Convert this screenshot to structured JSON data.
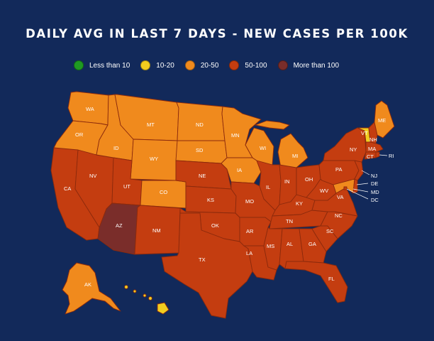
{
  "title": "DAILY AVG IN LAST 7 DAYS - NEW CASES PER 100K",
  "colors": {
    "background": "#12295a",
    "less_than_10": "#1f9a22",
    "10_20": "#f2cd1f",
    "20_50": "#f08a1d",
    "50_100": "#c43d10",
    "more_than_100": "#7a2d2a"
  },
  "legend": [
    {
      "label": "Less than 10",
      "color": "#1f9a22"
    },
    {
      "label": "10-20",
      "color": "#f2cd1f"
    },
    {
      "label": "20-50",
      "color": "#f08a1d"
    },
    {
      "label": "50-100",
      "color": "#c43d10"
    },
    {
      "label": "More than 100",
      "color": "#7a2d2a"
    }
  ],
  "states": {
    "WA": {
      "label": "WA",
      "category": "20-50"
    },
    "OR": {
      "label": "OR",
      "category": "20-50"
    },
    "CA": {
      "label": "CA",
      "category": "50-100"
    },
    "NV": {
      "label": "NV",
      "category": "50-100"
    },
    "ID": {
      "label": "ID",
      "category": "20-50"
    },
    "MT": {
      "label": "MT",
      "category": "20-50"
    },
    "WY": {
      "label": "WY",
      "category": "20-50"
    },
    "UT": {
      "label": "UT",
      "category": "50-100"
    },
    "AZ": {
      "label": "AZ",
      "category": "More than 100"
    },
    "CO": {
      "label": "CO",
      "category": "20-50"
    },
    "NM": {
      "label": "NM",
      "category": "50-100"
    },
    "ND": {
      "label": "ND",
      "category": "20-50"
    },
    "SD": {
      "label": "SD",
      "category": "20-50"
    },
    "NE": {
      "label": "NE",
      "category": "50-100"
    },
    "KS": {
      "label": "KS",
      "category": "50-100"
    },
    "OK": {
      "label": "OK",
      "category": "50-100"
    },
    "TX": {
      "label": "TX",
      "category": "50-100"
    },
    "MN": {
      "label": "MN",
      "category": "20-50"
    },
    "IA": {
      "label": "IA",
      "category": "20-50"
    },
    "MO": {
      "label": "MO",
      "category": "50-100"
    },
    "AR": {
      "label": "AR",
      "category": "50-100"
    },
    "LA": {
      "label": "LA",
      "category": "50-100"
    },
    "WI": {
      "label": "WI",
      "category": "20-50"
    },
    "IL": {
      "label": "IL",
      "category": "50-100"
    },
    "MI": {
      "label": "MI",
      "category": "20-50"
    },
    "IN": {
      "label": "IN",
      "category": "50-100"
    },
    "OH": {
      "label": "OH",
      "category": "50-100"
    },
    "KY": {
      "label": "KY",
      "category": "50-100"
    },
    "TN": {
      "label": "TN",
      "category": "50-100"
    },
    "MS": {
      "label": "MS",
      "category": "50-100"
    },
    "AL": {
      "label": "AL",
      "category": "50-100"
    },
    "GA": {
      "label": "GA",
      "category": "50-100"
    },
    "FL": {
      "label": "FL",
      "category": "50-100"
    },
    "SC": {
      "label": "SC",
      "category": "50-100"
    },
    "NC": {
      "label": "NC",
      "category": "50-100"
    },
    "VA": {
      "label": "VA",
      "category": "50-100"
    },
    "WV": {
      "label": "WV",
      "category": "50-100"
    },
    "PA": {
      "label": "PA",
      "category": "50-100"
    },
    "NY": {
      "label": "NY",
      "category": "50-100"
    },
    "VT": {
      "label": "VT",
      "category": "10-20"
    },
    "NH": {
      "label": "NH",
      "category": "50-100"
    },
    "ME": {
      "label": "ME",
      "category": "20-50"
    },
    "MA": {
      "label": "MA",
      "category": "50-100"
    },
    "CT": {
      "label": "CT",
      "category": "50-100"
    },
    "RI": {
      "label": "RI",
      "category": "50-100"
    },
    "NJ": {
      "label": "NJ",
      "category": "50-100"
    },
    "DE": {
      "label": "DE",
      "category": "50-100"
    },
    "MD": {
      "label": "MD",
      "category": "20-50"
    },
    "DC": {
      "label": "DC",
      "category": "50-100"
    },
    "AK": {
      "label": "AK",
      "category": "20-50"
    },
    "HI": {
      "label": "HI",
      "category": "10-20"
    }
  }
}
